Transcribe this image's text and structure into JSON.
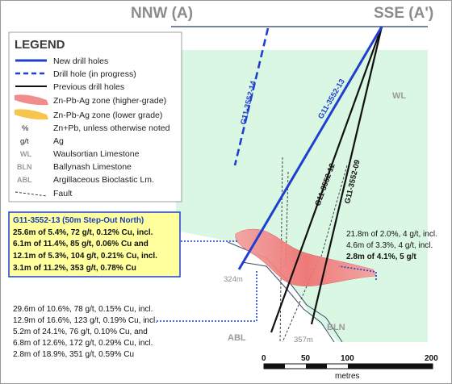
{
  "header": {
    "left": "NNW (A)",
    "right": "SSE (A')"
  },
  "legend": {
    "title": "LEGEND",
    "items": [
      {
        "symbol": "",
        "label": "New drill holes"
      },
      {
        "symbol": "",
        "label": "Drill hole (in progress)"
      },
      {
        "symbol": "",
        "label": "Previous drill holes"
      },
      {
        "symbol": "",
        "label": "Zn-Pb-Ag zone (higher-grade)"
      },
      {
        "symbol": "",
        "label": "Zn-Pb-Ag zone (lower grade)"
      },
      {
        "symbol": "%",
        "label": "Zn+Pb, unless otherwise noted"
      },
      {
        "symbol": "g/t",
        "label": "Ag"
      },
      {
        "symbol": "WL",
        "label": "Waulsortian Limestone"
      },
      {
        "symbol": "BLN",
        "label": "Ballynash Limestone"
      },
      {
        "symbol": "ABL",
        "label": "Argillaceous Bioclastic Lm."
      },
      {
        "symbol": "",
        "label": "Fault"
      }
    ]
  },
  "colors": {
    "new_hole": "#1f3fd1",
    "previous_hole": "#111111",
    "wl_fill": "#d9f7e3",
    "high_grade": "#f08080",
    "low_grade": "#f5c242",
    "highlight_box": "#ffff9e"
  },
  "holes": {
    "h14": "G11-3552-14",
    "h13": "G11-3552-13",
    "h12": "G11-3552-12",
    "h09": "G11-3552-09"
  },
  "formations": {
    "wl": "WL",
    "bln": "BLN",
    "abl": "ABL"
  },
  "depths": {
    "d324": "324m",
    "d357": "357m"
  },
  "highlight": {
    "title": "G11-3552-13 (50m Step-Out North)",
    "lines": [
      "25.6m of 5.4%, 72 g/t, 0.12% Cu, incl.",
      "6.1m of 11.4%, 85 g/t, 0.06% Cu and",
      "12.1m of 5.3%, 104 g/t, 0.21% Cu, incl.",
      "3.1m of 11.2%, 353 g/t, 0.78% Cu"
    ]
  },
  "right_results": [
    "21.8m of 2.0%, 4 g/t, incl.",
    "4.6m of 3.3%, 4 g/t, incl.",
    "2.8m of 4.1%, 5 g/t"
  ],
  "bottom_results": [
    "29.6m of 10.6%, 78 g/t, 0.15% Cu, incl.",
    "12.9m of 16.6%, 123 g/t, 0.19% Cu, incl.",
    "5.2m of 24.1%, 76 g/t, 0.10% Cu, and",
    "6.8m of 12.6%, 172 g/t, 0.29% Cu, incl.",
    "2.8m of 18.9%, 351 g/t, 0.59% Cu"
  ],
  "scale": {
    "ticks": [
      "0",
      "50",
      "100",
      "200"
    ],
    "unit": "metres"
  }
}
